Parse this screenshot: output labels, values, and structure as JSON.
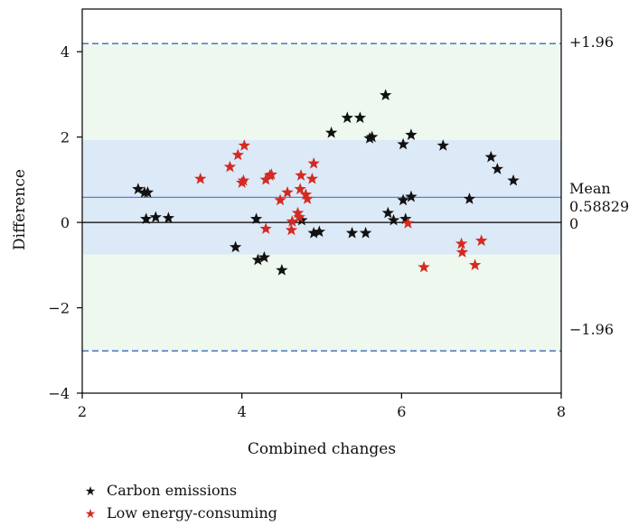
{
  "chart_data": {
    "type": "scatter",
    "xlabel": "Combined changes",
    "ylabel": "Difference",
    "xlim": [
      2,
      8
    ],
    "ylim": [
      -4,
      5
    ],
    "xticks": [
      "2",
      "4",
      "6",
      "8"
    ],
    "yticks": [
      "−4",
      "−2",
      "0",
      "2",
      "4"
    ],
    "xtick_values": [
      2,
      4,
      6,
      8
    ],
    "ytick_values": [
      -4,
      -2,
      0,
      2,
      4
    ],
    "grid": false,
    "legend_position": "bottom-left",
    "reference_lines": {
      "mean": 0.58829,
      "upper_limit": 4.19,
      "lower_limit": -3.01,
      "zero": 0
    },
    "reference_labels": {
      "upper": "+1.96",
      "mean_word": "Mean",
      "mean_value": "0.58829",
      "zero": "0",
      "lower": "−1.96"
    },
    "bands": {
      "outer_color": "#eef8ee",
      "inner_color": "#dce9f7",
      "inner_range": [
        -0.75,
        1.93
      ],
      "outer_range": [
        -3.01,
        4.19
      ]
    },
    "colors": {
      "carbon": "#111111",
      "low_energy": "#d42a20",
      "mean_line": "#4a74c4",
      "limit_line": "#4a74c4",
      "zero_line": "#000000"
    },
    "series": [
      {
        "name": "Carbon emissions",
        "color": "#111111",
        "points": [
          [
            2.7,
            0.78
          ],
          [
            2.78,
            0.7
          ],
          [
            2.82,
            0.7
          ],
          [
            2.8,
            0.08
          ],
          [
            2.92,
            0.12
          ],
          [
            3.08,
            0.1
          ],
          [
            3.92,
            -0.58
          ],
          [
            4.18,
            0.08
          ],
          [
            4.2,
            -0.88
          ],
          [
            4.28,
            -0.82
          ],
          [
            4.5,
            -1.12
          ],
          [
            4.75,
            0.05
          ],
          [
            4.9,
            -0.25
          ],
          [
            4.97,
            -0.22
          ],
          [
            5.12,
            2.1
          ],
          [
            5.32,
            2.45
          ],
          [
            5.38,
            -0.25
          ],
          [
            5.48,
            2.45
          ],
          [
            5.55,
            -0.25
          ],
          [
            5.6,
            1.97
          ],
          [
            5.63,
            2.0
          ],
          [
            5.8,
            2.98
          ],
          [
            5.83,
            0.22
          ],
          [
            5.9,
            0.05
          ],
          [
            6.02,
            1.83
          ],
          [
            6.02,
            0.52
          ],
          [
            6.05,
            0.08
          ],
          [
            6.12,
            2.05
          ],
          [
            6.12,
            0.6
          ],
          [
            6.52,
            1.8
          ],
          [
            6.85,
            0.55
          ],
          [
            7.12,
            1.53
          ],
          [
            7.2,
            1.25
          ],
          [
            7.4,
            0.98
          ]
        ]
      },
      {
        "name": "Low energy-consuming",
        "color": "#d42a20",
        "points": [
          [
            3.48,
            1.02
          ],
          [
            3.85,
            1.3
          ],
          [
            3.95,
            1.58
          ],
          [
            4.0,
            0.93
          ],
          [
            4.02,
            0.98
          ],
          [
            4.03,
            1.8
          ],
          [
            4.3,
            1.0
          ],
          [
            4.3,
            -0.15
          ],
          [
            4.35,
            1.1
          ],
          [
            4.37,
            1.12
          ],
          [
            4.48,
            0.52
          ],
          [
            4.57,
            0.7
          ],
          [
            4.62,
            -0.18
          ],
          [
            4.63,
            0.02
          ],
          [
            4.7,
            0.22
          ],
          [
            4.72,
            0.12
          ],
          [
            4.73,
            0.78
          ],
          [
            4.74,
            1.1
          ],
          [
            4.8,
            0.65
          ],
          [
            4.82,
            0.55
          ],
          [
            4.88,
            1.02
          ],
          [
            4.9,
            1.38
          ],
          [
            6.08,
            -0.02
          ],
          [
            6.28,
            -1.05
          ],
          [
            6.75,
            -0.5
          ],
          [
            6.76,
            -0.7
          ],
          [
            6.92,
            -1.0
          ],
          [
            7.0,
            -0.43
          ]
        ]
      }
    ],
    "legend": [
      {
        "label": "Carbon emissions",
        "color": "#111111"
      },
      {
        "label": "Low energy-consuming",
        "color": "#d42a20"
      }
    ]
  }
}
